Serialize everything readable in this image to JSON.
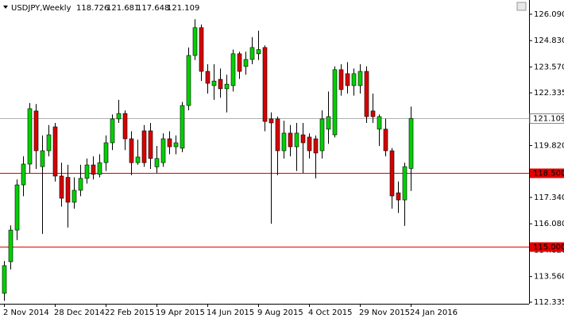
{
  "chart_data": {
    "type": "candlestick",
    "title": "USDJPY,Weekly",
    "categories": [
      "2 Nov 2014",
      null,
      null,
      null,
      null,
      null,
      null,
      null,
      "28 Dec 2014",
      null,
      null,
      null,
      null,
      null,
      null,
      null,
      "22 Feb 2015",
      null,
      null,
      null,
      null,
      null,
      null,
      null,
      "19 Apr 2015",
      null,
      null,
      null,
      null,
      null,
      null,
      null,
      "14 Jun 2015",
      null,
      null,
      null,
      null,
      null,
      null,
      null,
      "9 Aug 2015",
      null,
      null,
      null,
      null,
      null,
      null,
      null,
      "4 Oct 2015",
      null,
      null,
      null,
      null,
      null,
      null,
      null,
      "29 Nov 2015",
      null,
      null,
      null,
      null,
      null,
      null,
      null,
      "24 Jan 2016"
    ],
    "open": [
      112.76,
      114.27,
      115.78,
      117.94,
      118.93,
      121.47,
      118.81,
      119.57,
      120.71,
      118.36,
      118.3,
      117.11,
      117.68,
      118.25,
      118.89,
      118.44,
      119.0,
      119.95,
      121.09,
      121.35,
      120.14,
      119.0,
      120.52,
      120.52,
      118.8,
      119.0,
      120.14,
      119.76,
      119.69,
      121.73,
      124.12,
      125.45,
      123.36,
      122.68,
      122.98,
      122.53,
      122.68,
      124.2,
      123.6,
      123.93,
      124.2,
      124.5,
      121.09,
      121.09,
      119.57,
      120.41,
      119.76,
      120.33,
      120.22,
      120.14,
      119.57,
      120.6,
      120.33,
      123.44,
      123.25,
      122.68,
      122.68,
      123.36,
      121.47,
      120.6,
      120.6,
      119.57,
      117.56,
      117.22,
      118.726
    ],
    "high": [
      114.3,
      116.0,
      118.2,
      119.3,
      121.85,
      121.8,
      120.3,
      120.8,
      120.9,
      119.0,
      118.9,
      118.3,
      118.9,
      119.2,
      119.3,
      119.4,
      120.3,
      121.3,
      122.0,
      121.5,
      120.5,
      120.1,
      120.8,
      120.9,
      119.8,
      120.4,
      120.5,
      120.3,
      121.9,
      124.5,
      125.85,
      125.6,
      123.7,
      123.7,
      123.5,
      123.2,
      124.4,
      124.3,
      124.3,
      125.0,
      125.3,
      124.6,
      121.4,
      121.2,
      121.0,
      120.8,
      120.9,
      120.9,
      120.4,
      120.3,
      121.5,
      122.4,
      123.6,
      123.7,
      123.8,
      123.5,
      123.7,
      123.6,
      122.3,
      121.3,
      121.1,
      119.7,
      118.1,
      119.0,
      121.681
    ],
    "low": [
      112.4,
      113.9,
      115.3,
      117.4,
      118.5,
      118.7,
      115.6,
      119.3,
      118.1,
      116.9,
      115.9,
      116.8,
      117.4,
      118.0,
      118.2,
      118.3,
      118.6,
      119.6,
      120.9,
      119.6,
      118.4,
      118.9,
      118.8,
      118.7,
      118.5,
      118.8,
      119.4,
      119.4,
      119.5,
      121.5,
      123.9,
      122.9,
      122.3,
      122.0,
      122.1,
      121.4,
      122.4,
      123.0,
      123.2,
      123.7,
      123.9,
      120.5,
      116.08,
      118.4,
      119.2,
      119.3,
      118.6,
      118.5,
      119.2,
      118.25,
      119.2,
      119.9,
      120.2,
      122.2,
      122.3,
      122.2,
      122.3,
      120.9,
      120.9,
      119.8,
      119.3,
      116.8,
      116.6,
      115.98,
      117.648
    ],
    "close": [
      114.08,
      115.78,
      117.94,
      118.93,
      121.58,
      119.57,
      119.57,
      120.33,
      118.36,
      117.3,
      117.11,
      117.68,
      118.25,
      118.89,
      118.44,
      119.0,
      119.95,
      121.09,
      121.35,
      120.14,
      119.0,
      119.27,
      119.0,
      119.2,
      119.2,
      120.14,
      119.76,
      119.95,
      121.73,
      124.12,
      125.45,
      123.36,
      122.79,
      122.9,
      122.53,
      122.75,
      124.2,
      123.36,
      123.93,
      124.5,
      124.4,
      120.97,
      120.9,
      119.57,
      120.41,
      119.76,
      120.41,
      119.95,
      119.57,
      119.46,
      121.09,
      121.2,
      123.44,
      122.49,
      122.68,
      123.25,
      123.36,
      121.2,
      121.2,
      121.2,
      119.57,
      117.41,
      117.22,
      118.81,
      121.109
    ],
    "up_color": "#00d000",
    "down_color": "#d80000",
    "ylim": [
      112.26,
      126.77
    ],
    "yticks": [
      {
        "value": 126.09,
        "label": "126.090"
      },
      {
        "value": 124.83,
        "label": "124.830"
      },
      {
        "value": 123.57,
        "label": "123.570"
      },
      122.335,
      {
        "value": 119.82,
        "label": "119.820"
      },
      {
        "value": 117.34,
        "label": "117.340"
      },
      {
        "value": 116.08,
        "label": "116.080"
      },
      {
        "value": 114.82,
        "label": "114.820"
      },
      {
        "value": 113.56,
        "label": "113.560"
      },
      112.335
    ],
    "levels": [
      {
        "value": 118.5,
        "label": "118.500"
      },
      {
        "value": 115.0,
        "label": "115.000"
      }
    ],
    "level_color": "#e00000"
  }
}
